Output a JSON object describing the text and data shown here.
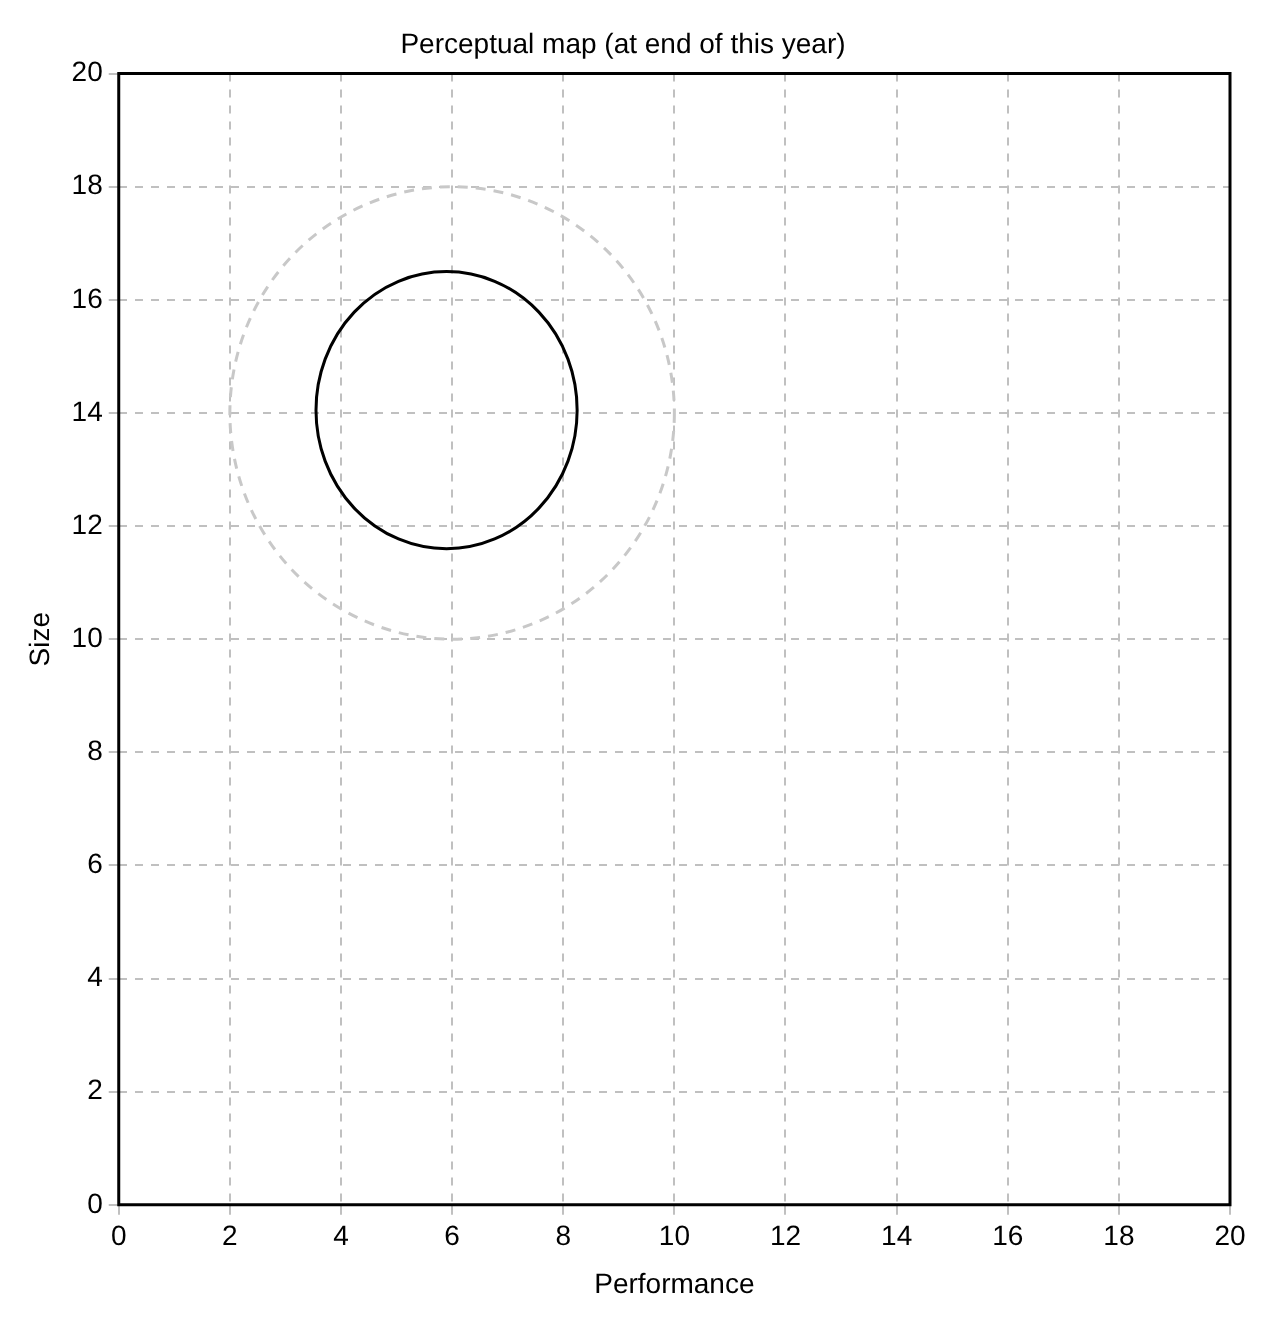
{
  "chart_data": {
    "type": "scatter",
    "title": "Perceptual map (at end of this year)",
    "xlabel": "Performance",
    "ylabel": "Size",
    "xlim": [
      0,
      20
    ],
    "ylim": [
      0,
      20
    ],
    "xticks": [
      0,
      2,
      4,
      6,
      8,
      10,
      12,
      14,
      16,
      18,
      20
    ],
    "yticks": [
      0,
      2,
      4,
      6,
      8,
      10,
      12,
      14,
      16,
      18,
      20
    ],
    "grid": true,
    "legend": false
  }
}
